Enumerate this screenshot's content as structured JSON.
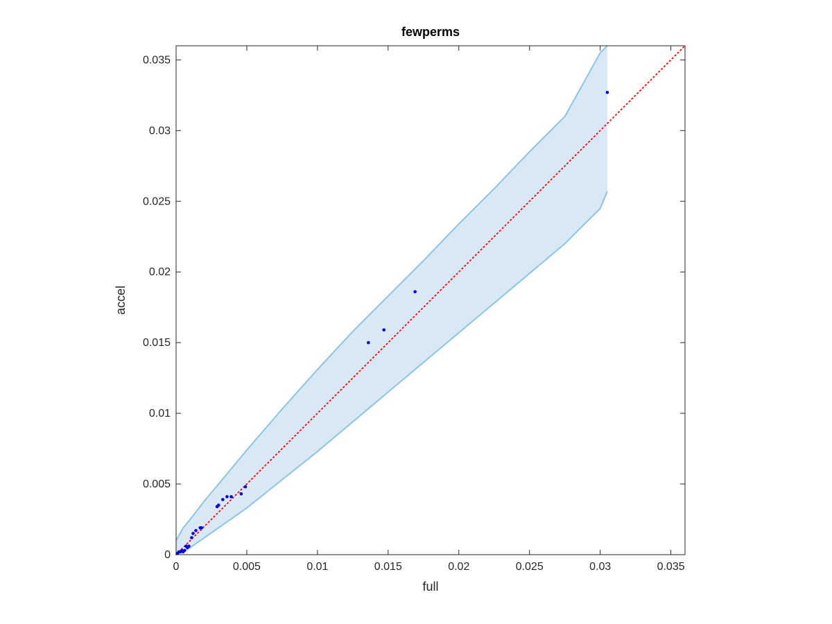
{
  "chart_data": {
    "type": "scatter",
    "title": "fewperms",
    "xlabel": "full",
    "ylabel": "accel",
    "xlim": [
      0,
      0.036
    ],
    "ylim": [
      0,
      0.036
    ],
    "xticks": [
      0,
      0.005,
      0.01,
      0.015,
      0.02,
      0.025,
      0.03,
      0.035
    ],
    "yticks": [
      0,
      0.005,
      0.01,
      0.015,
      0.02,
      0.025,
      0.03,
      0.035
    ],
    "xtick_labels": [
      "0",
      "0.005",
      "0.01",
      "0.015",
      "0.02",
      "0.025",
      "0.03",
      "0.035"
    ],
    "ytick_labels": [
      "0",
      "0.005",
      "0.01",
      "0.015",
      "0.02",
      "0.025",
      "0.03",
      "0.035"
    ],
    "grid": false,
    "colors": {
      "points": "#0000ee",
      "reference_line": "#ff0000",
      "band_fill": "#d8e8f5",
      "band_edge": "#8ec3e3",
      "axes": "#262626"
    },
    "points": [
      {
        "x": 0.0001,
        "y": 0.0001
      },
      {
        "x": 0.0002,
        "y": 0.0002
      },
      {
        "x": 0.0003,
        "y": 0.0002
      },
      {
        "x": 0.0004,
        "y": 0.0003
      },
      {
        "x": 0.0005,
        "y": 0.0002
      },
      {
        "x": 0.0006,
        "y": 0.0003
      },
      {
        "x": 0.0007,
        "y": 0.0006
      },
      {
        "x": 0.0008,
        "y": 0.0005
      },
      {
        "x": 0.0009,
        "y": 0.0006
      },
      {
        "x": 0.0011,
        "y": 0.0012
      },
      {
        "x": 0.0012,
        "y": 0.0015
      },
      {
        "x": 0.0014,
        "y": 0.0017
      },
      {
        "x": 0.0017,
        "y": 0.0019
      },
      {
        "x": 0.0018,
        "y": 0.0019
      },
      {
        "x": 0.0029,
        "y": 0.0034
      },
      {
        "x": 0.003,
        "y": 0.0035
      },
      {
        "x": 0.0033,
        "y": 0.0039
      },
      {
        "x": 0.0036,
        "y": 0.0041
      },
      {
        "x": 0.0039,
        "y": 0.0041
      },
      {
        "x": 0.0046,
        "y": 0.0043
      },
      {
        "x": 0.0049,
        "y": 0.0048
      },
      {
        "x": 0.0136,
        "y": 0.015
      },
      {
        "x": 0.0147,
        "y": 0.0159
      },
      {
        "x": 0.0169,
        "y": 0.0186
      },
      {
        "x": 0.0305,
        "y": 0.0327
      }
    ],
    "reference_line": {
      "style": "dotted",
      "x": [
        0,
        0.036
      ],
      "y": [
        0,
        0.036
      ]
    },
    "confidence_band": {
      "x": [
        0,
        0.0005,
        0.001,
        0.002,
        0.003,
        0.005,
        0.0075,
        0.01,
        0.0125,
        0.015,
        0.0175,
        0.02,
        0.0225,
        0.025,
        0.0275,
        0.03,
        0.0305
      ],
      "upper": [
        0.001,
        0.0019,
        0.0025,
        0.0038,
        0.005,
        0.0074,
        0.0103,
        0.0131,
        0.0158,
        0.0183,
        0.0208,
        0.0234,
        0.0259,
        0.0285,
        0.031,
        0.0355,
        0.036
      ],
      "lower": [
        0,
        0.0002,
        0.0005,
        0.0012,
        0.0019,
        0.0033,
        0.0053,
        0.0073,
        0.0094,
        0.0115,
        0.0136,
        0.0157,
        0.0178,
        0.0199,
        0.022,
        0.0245,
        0.0257
      ]
    }
  }
}
